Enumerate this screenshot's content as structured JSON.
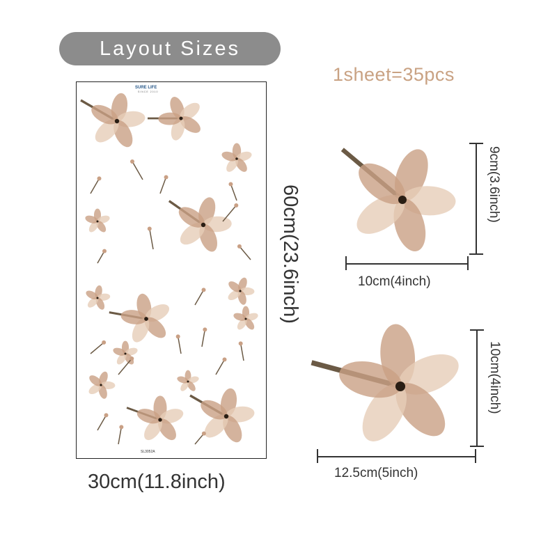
{
  "header": {
    "title": "Layout Sizes",
    "sheet_count": "1sheet=35pcs"
  },
  "sheet": {
    "brand": "SURE LIFE",
    "since": "SINCE 2010",
    "code": "SL3052A",
    "width_label": "30cm(11.8inch)",
    "height_label": "60cm(23.6inch)"
  },
  "samples": [
    {
      "width_label": "10cm(4inch)",
      "height_label": "9cm(3.6inch)"
    },
    {
      "width_label": "12.5cm(5inch)",
      "height_label": "10cm(4inch)"
    }
  ],
  "colors": {
    "pill": "#8c8c8c",
    "accent": "#c9a283",
    "petal": "#e6cdb8",
    "petal_dark": "#c9a085",
    "leaf": "#6b5a45"
  }
}
